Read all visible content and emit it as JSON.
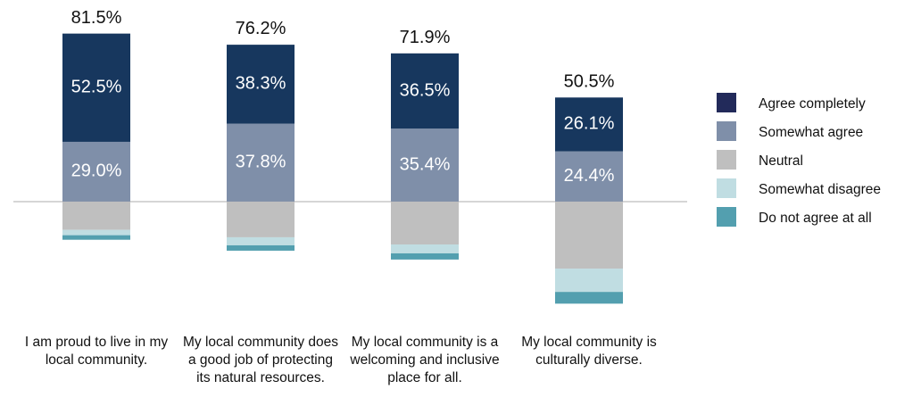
{
  "chart_data": {
    "type": "diverging-stacked-bar",
    "categories": [
      "I am proud to live in my local community.",
      "My local community does a good job of protecting its natural resources.",
      "My local community is a welcoming and inclusive place for all.",
      "My local community is culturally diverse."
    ],
    "series": [
      {
        "name": "Agree completely",
        "color": "#17375e",
        "side": "above",
        "values": [
          52.5,
          38.3,
          36.5,
          26.1
        ],
        "value_labels": [
          "52.5%",
          "38.3%",
          "36.5%",
          "26.1%"
        ]
      },
      {
        "name": "Somewhat agree",
        "color": "#7f8fa9",
        "side": "above",
        "values": [
          29.0,
          37.8,
          35.4,
          24.4
        ],
        "value_labels": [
          "29.0%",
          "37.8%",
          "35.4%",
          "24.4%"
        ]
      },
      {
        "name": "Neutral",
        "color": "#bfbfbf",
        "side": "below",
        "values": [
          13.7,
          17.3,
          20.8,
          32.5
        ]
      },
      {
        "name": "Somewhat disagree",
        "color": "#c0dde2",
        "side": "below",
        "values": [
          2.6,
          3.9,
          4.3,
          11.3
        ]
      },
      {
        "name": "Do not agree at all",
        "color": "#539faf",
        "side": "below",
        "values": [
          2.2,
          2.6,
          3.0,
          5.7
        ]
      }
    ],
    "totals": {
      "values": [
        81.5,
        76.2,
        71.9,
        50.5
      ],
      "value_labels": [
        "81.5%",
        "76.2%",
        "71.9%",
        "50.5%"
      ]
    },
    "ylim": [
      -60,
      90
    ],
    "legend": "right"
  }
}
